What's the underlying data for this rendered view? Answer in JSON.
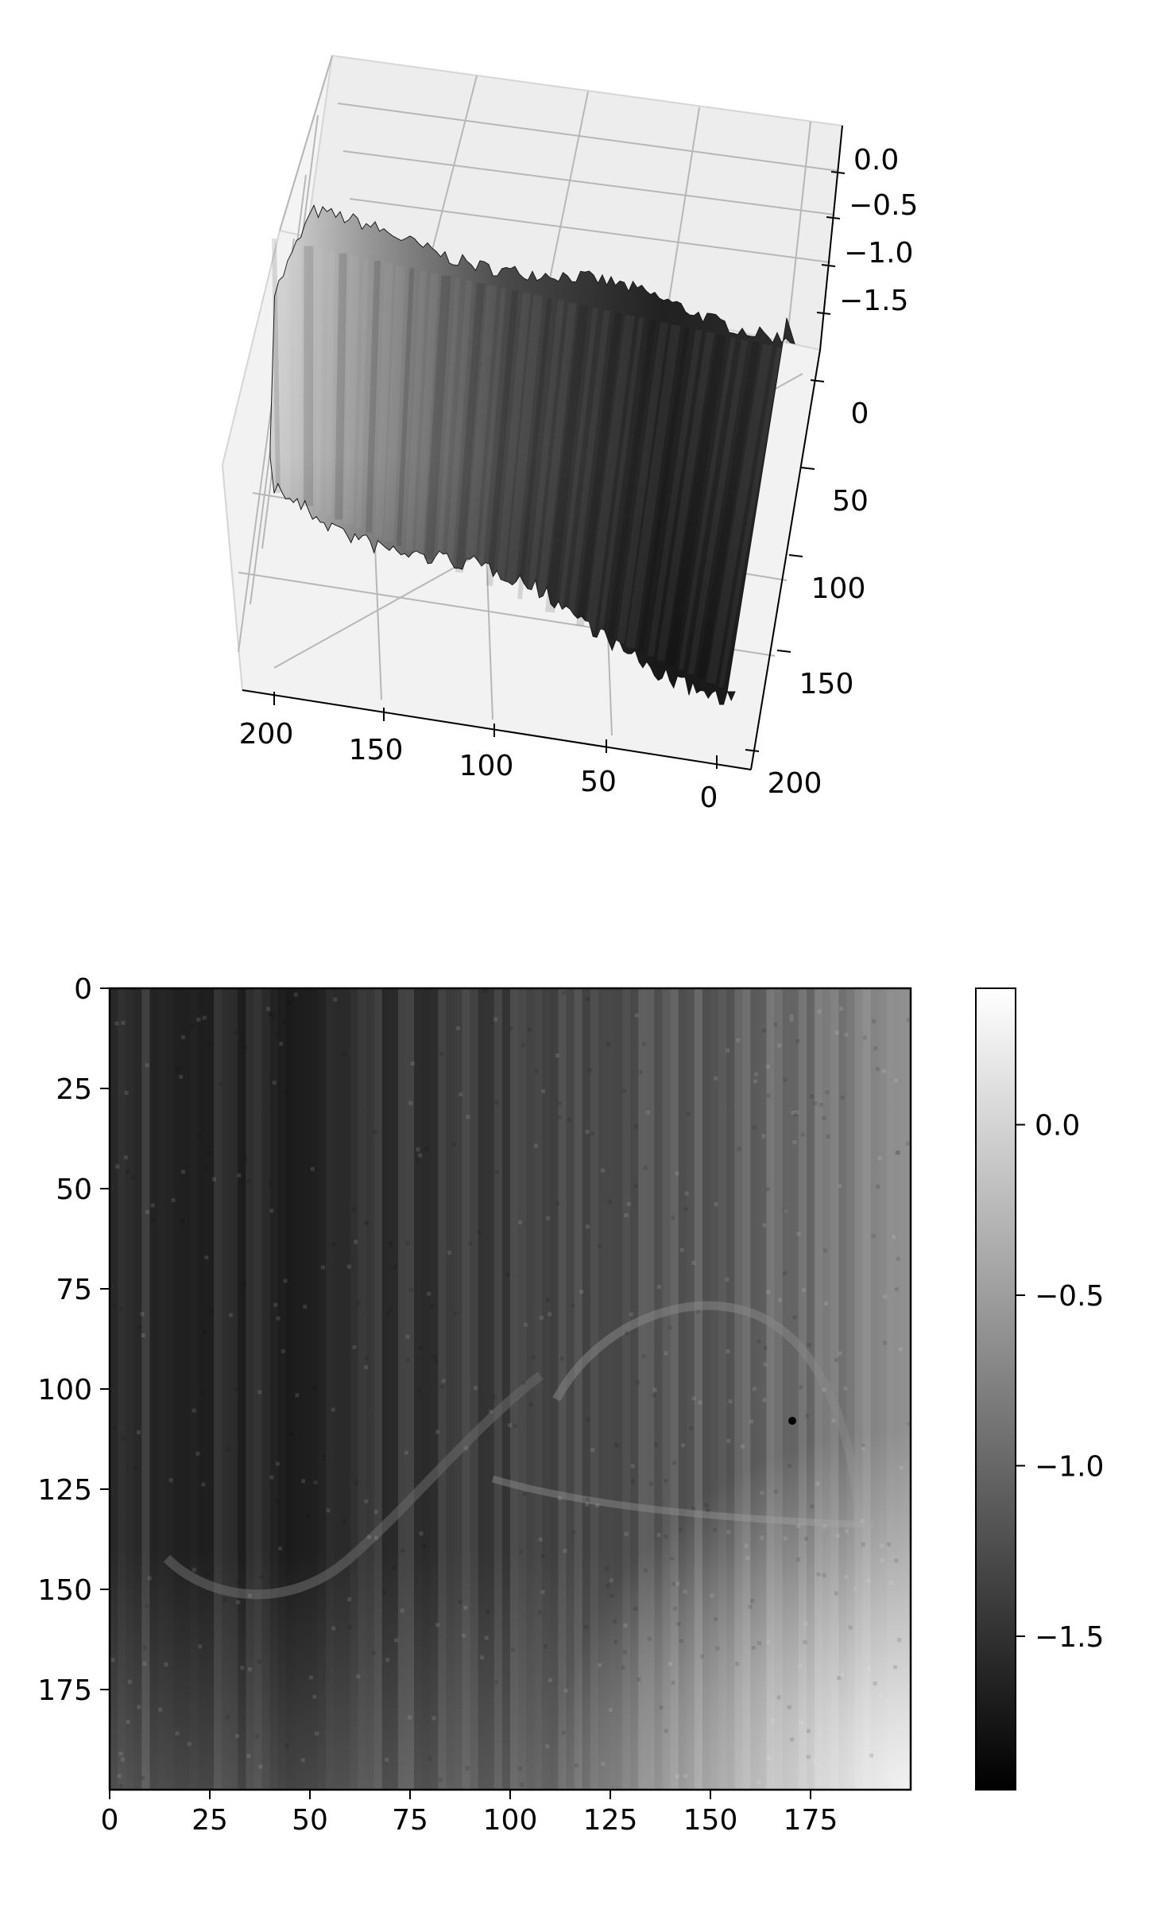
{
  "chart_data": [
    {
      "type": "surface3d",
      "colormap": "gray",
      "x_ticks": [
        "200",
        "150",
        "100",
        "50",
        "0"
      ],
      "y_ticks": [
        "0",
        "50",
        "100",
        "150",
        "200"
      ],
      "z_ticks": [
        "0.0",
        "−0.5",
        "−1.0",
        "−1.5"
      ],
      "xlim": [
        0,
        200
      ],
      "ylim": [
        0,
        200
      ],
      "zlim": [
        -1.9,
        0.0
      ],
      "grid": true
    },
    {
      "type": "heatmap",
      "colormap": "gray",
      "x_ticks": [
        "0",
        "25",
        "50",
        "75",
        "100",
        "125",
        "150",
        "175"
      ],
      "y_ticks": [
        "0",
        "25",
        "50",
        "75",
        "100",
        "125",
        "150",
        "175"
      ],
      "xlim": [
        0,
        200
      ],
      "ylim": [
        200,
        0
      ],
      "colorbar_ticks": [
        "0.0",
        "−0.5",
        "−1.0",
        "−1.5"
      ],
      "colorbar_range": [
        -1.95,
        0.4
      ]
    }
  ],
  "colors": {
    "pane": "#f2f2f2",
    "grid": "#b0b0b0",
    "axis": "#000000"
  }
}
